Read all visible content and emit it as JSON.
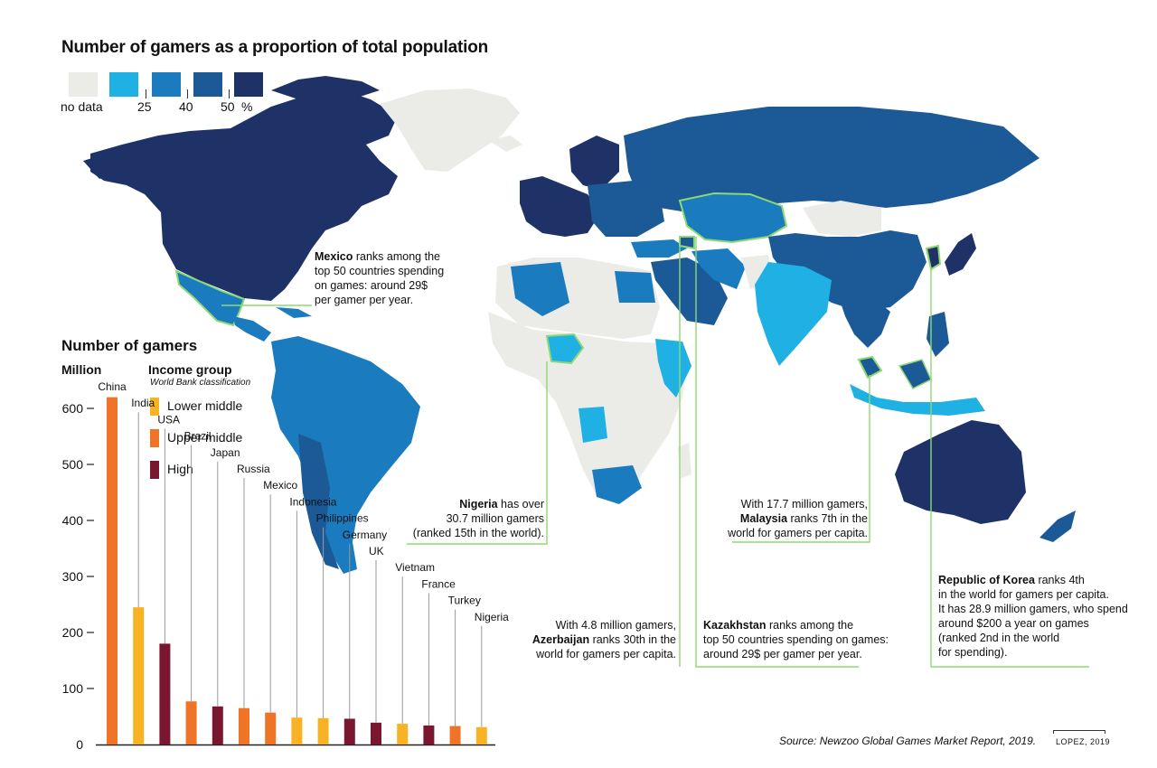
{
  "map_title": "Number of gamers as a proportion of total population",
  "legend": {
    "no_data_label": "no data",
    "tick_labels": [
      "25",
      "40",
      "50"
    ],
    "unit": "%",
    "colors": {
      "no_data": "#ebebe8",
      "lt25": "#1fb1e3",
      "25_40": "#1a7bbf",
      "40_50": "#1b5a96",
      "gt50": "#1e3268"
    }
  },
  "annotations": {
    "mexico": {
      "bold": "Mexico",
      "lines": [
        " ranks among the",
        "top 50 countries spending",
        "on games: around 29$",
        "per gamer per year."
      ]
    },
    "nigeria": {
      "bold": "Nigeria",
      "lines": [
        " has over",
        "30.7 million gamers",
        "(ranked 15th in the world)."
      ]
    },
    "malaysia": {
      "line1": "With 17.7 million gamers,",
      "bold": "Malaysia",
      "lines": [
        " ranks 7th in the",
        "world for gamers per capita."
      ]
    },
    "korea": {
      "bold": "Republic of Korea",
      "lines": [
        " ranks 4th",
        "in the world for gamers per capita.",
        "It has 28.9 million gamers, who spend",
        "around $200 a year on games",
        "(ranked  2nd in the world",
        "for spending)."
      ]
    },
    "azerbaijan": {
      "line1": "With 4.8 million gamers,",
      "bold": "Azerbaijan",
      "lines": [
        " ranks 30th in the",
        "world for gamers per capita."
      ]
    },
    "kazakhstan": {
      "bold": "Kazakhstan",
      "lines": [
        " ranks among the",
        "top 50 countries spending on games:",
        "around 29$ per gamer per year."
      ]
    }
  },
  "chart_section": {
    "title": "Number of gamers",
    "unit": "Million",
    "income_title": "Income group",
    "income_subtitle": "World Bank classification",
    "income_groups": [
      {
        "label": "Lower middle",
        "color": "#f7b323"
      },
      {
        "label": "Upper middle",
        "color": "#f07428"
      },
      {
        "label": "High",
        "color": "#7b1631"
      }
    ]
  },
  "chart_data": {
    "type": "bar",
    "title": "Number of gamers",
    "ylabel": "Million",
    "ylim": [
      0,
      620
    ],
    "yticks": [
      0,
      100,
      200,
      300,
      400,
      500,
      600
    ],
    "categories": [
      "China",
      "India",
      "USA",
      "Brazil",
      "Japan",
      "Russia",
      "Mexico",
      "Indonesia",
      "Philippines",
      "Germany",
      "UK",
      "Vietnam",
      "France",
      "Turkey",
      "Nigeria"
    ],
    "values": [
      620,
      245,
      180,
      77,
      68,
      65,
      57,
      48,
      47,
      46,
      39,
      37,
      34,
      33,
      31
    ],
    "groups": [
      "Upper middle",
      "Lower middle",
      "High",
      "Upper middle",
      "High",
      "Upper middle",
      "Upper middle",
      "Lower middle",
      "Lower middle",
      "High",
      "High",
      "Lower middle",
      "High",
      "Upper middle",
      "Lower middle"
    ]
  },
  "source": "Source:  Newzoo Global Games Market Report, 2019.",
  "credit": "LOPEZ, 2019"
}
